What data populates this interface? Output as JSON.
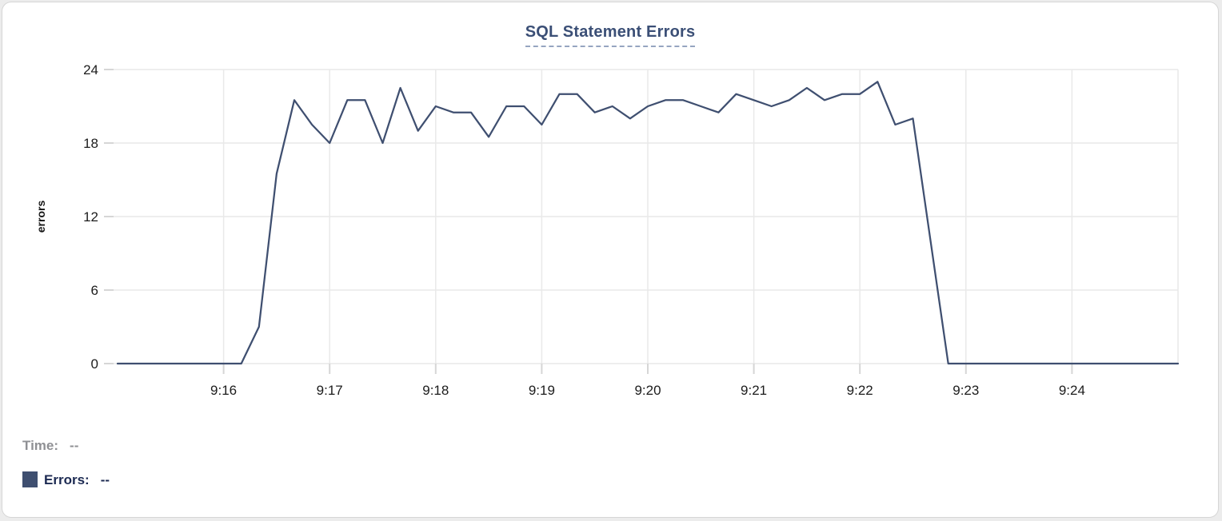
{
  "title": "SQL Statement Errors",
  "chart_data": {
    "type": "line",
    "title": "SQL Statement Errors",
    "xlabel": "",
    "ylabel": "errors",
    "grid": true,
    "legend_position": "bottom-left",
    "x_axis": {
      "start": "9:15:00",
      "end": "9:25:00",
      "tick_labels": [
        "9:16",
        "9:17",
        "9:18",
        "9:19",
        "9:20",
        "9:21",
        "9:22",
        "9:23",
        "9:24"
      ],
      "gridlines": [
        "9:16",
        "9:17",
        "9:18",
        "9:19",
        "9:20",
        "9:21",
        "9:22",
        "9:23",
        "9:24",
        "9:25"
      ]
    },
    "y_axis": {
      "ticks": [
        0,
        6,
        12,
        18,
        24
      ],
      "lim": [
        0,
        24
      ]
    },
    "series": [
      {
        "name": "Errors",
        "color": "#3f4f70",
        "start_time": "9:15:00",
        "interval_seconds": 10,
        "values": [
          0,
          0,
          0,
          0,
          0,
          0,
          0,
          0,
          3,
          15.5,
          21.5,
          19.5,
          18,
          21.5,
          21.5,
          18,
          22.5,
          19,
          21,
          20.5,
          20.5,
          18.5,
          21,
          21,
          19.5,
          22,
          22,
          20.5,
          21,
          20,
          21,
          21.5,
          21.5,
          21,
          20.5,
          22,
          21.5,
          21,
          21.5,
          22.5,
          21.5,
          22,
          22,
          23,
          19.5,
          20,
          10,
          0,
          0,
          0,
          0,
          0,
          0,
          0,
          0,
          0,
          0,
          0,
          0,
          0,
          0
        ]
      }
    ]
  },
  "readout": {
    "time_label": "Time:",
    "time_value": "--",
    "errors_label": "Errors:",
    "errors_value": "--",
    "errors_swatch_color": "#3f4f70"
  }
}
